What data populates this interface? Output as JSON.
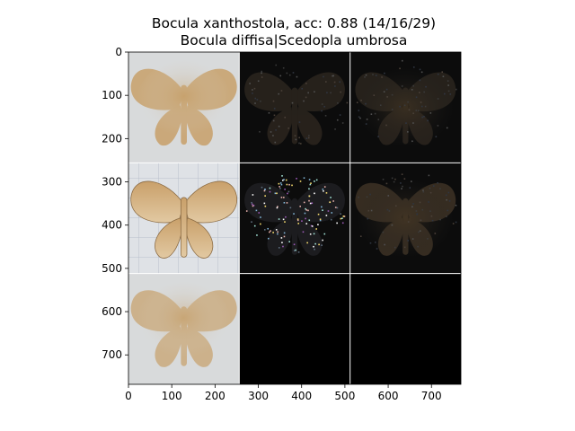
{
  "chart_data": {
    "type": "image-grid",
    "title_line1": "Bocula xanthostola, acc: 0.88 (14/16/29)",
    "title_line2": "Bocula diffisa|Scedopla umbrosa",
    "grid": {
      "rows": 3,
      "cols": 3,
      "cell_size_data_units": 256
    },
    "xlim": [
      0,
      768
    ],
    "ylim": [
      768,
      0
    ],
    "x_ticks": [
      0,
      100,
      200,
      300,
      400,
      500,
      600,
      700
    ],
    "y_ticks": [
      0,
      100,
      200,
      300,
      400,
      500,
      600,
      700
    ],
    "panels": [
      {
        "row": 0,
        "col": 0,
        "content": "moth-photo",
        "subject": "tan moth specimen"
      },
      {
        "row": 0,
        "col": 1,
        "content": "saliency-map",
        "subject": "dark noisy attribution"
      },
      {
        "row": 0,
        "col": 2,
        "content": "saliency-map",
        "subject": "faint moth silhouette"
      },
      {
        "row": 1,
        "col": 0,
        "content": "moth-photo",
        "subject": "moth on grid paper"
      },
      {
        "row": 1,
        "col": 1,
        "content": "saliency-map",
        "subject": "colorful speckled attribution"
      },
      {
        "row": 1,
        "col": 2,
        "content": "saliency-map",
        "subject": "dark moth silhouette"
      },
      {
        "row": 2,
        "col": 0,
        "content": "moth-photo",
        "subject": "blurred average moth"
      },
      {
        "row": 2,
        "col": 1,
        "content": "empty",
        "subject": "black"
      },
      {
        "row": 2,
        "col": 2,
        "content": "empty",
        "subject": "black"
      }
    ]
  }
}
